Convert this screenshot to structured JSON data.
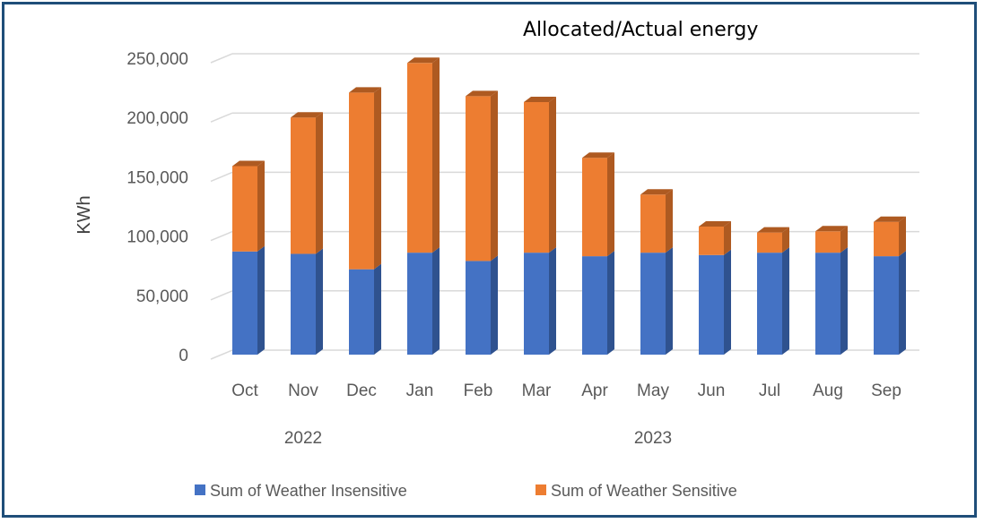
{
  "chart_data": {
    "type": "bar",
    "stacked": true,
    "title": "Allocated/Actual energy",
    "ylabel": "KWh",
    "ylim": [
      0,
      250000
    ],
    "y_ticks": [
      "0",
      "50,000",
      "100,000",
      "150,000",
      "200,000",
      "250,000"
    ],
    "y_tick_values": [
      0,
      50000,
      100000,
      150000,
      200000,
      250000
    ],
    "categories": [
      "Oct",
      "Nov",
      "Dec",
      "Jan",
      "Feb",
      "Mar",
      "Apr",
      "May",
      "Jun",
      "Jul",
      "Aug",
      "Sep"
    ],
    "year_groups": [
      {
        "label": "2022",
        "start": 0,
        "end": 2
      },
      {
        "label": "2023",
        "start": 3,
        "end": 11
      }
    ],
    "series": [
      {
        "name": "Sum of Weather Insensitive",
        "color": "#4472c4",
        "side_color": "#2f528f",
        "values": [
          87000,
          85000,
          72000,
          86000,
          79000,
          86000,
          83000,
          86000,
          84000,
          86000,
          86000,
          83000
        ]
      },
      {
        "name": "Sum of Weather Sensitive",
        "color": "#ed7d31",
        "side_color": "#ae5a21",
        "values": [
          72000,
          115000,
          149000,
          160000,
          139000,
          127000,
          83000,
          49000,
          24000,
          17000,
          18000,
          29000
        ]
      }
    ],
    "grid": true,
    "legend_position": "bottom"
  }
}
